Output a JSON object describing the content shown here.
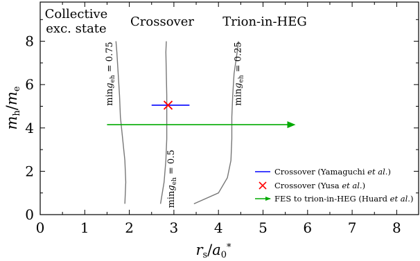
{
  "chart_data": {
    "type": "line",
    "xlabel": "r_s/a_0^*",
    "ylabel": "m_h/m_e",
    "xlim": [
      0,
      8.5
    ],
    "ylim": [
      0,
      9.2
    ],
    "xticks": [
      "0",
      "1",
      "2",
      "3",
      "4",
      "5",
      "6",
      "7",
      "8"
    ],
    "yticks": [
      "0",
      "2",
      "4",
      "6",
      "8"
    ],
    "region_labels": {
      "collective_line1": "Collective",
      "collective_line2": "exc. state",
      "crossover": "Crossover",
      "trion": "Trion-in-HEG"
    },
    "contours": [
      {
        "label": "min g_eh = 0.75",
        "label_text": "ming",
        "label_sub": "eh",
        "label_val": " = 0.75",
        "color": "#777777",
        "points": [
          [
            1.9,
            0.5
          ],
          [
            1.92,
            1.5
          ],
          [
            1.9,
            2.5
          ],
          [
            1.85,
            3.5
          ],
          [
            1.8,
            4.5
          ],
          [
            1.78,
            5.5
          ],
          [
            1.75,
            6.5
          ],
          [
            1.72,
            7.5
          ],
          [
            1.7,
            8.0
          ]
        ]
      },
      {
        "label": "min g_eh = 0.5",
        "label_text": "ming",
        "label_sub": "eh",
        "label_val": " = 0.5",
        "color": "#777777",
        "points": [
          [
            2.7,
            0.5
          ],
          [
            2.78,
            1.5
          ],
          [
            2.82,
            2.5
          ],
          [
            2.84,
            3.5
          ],
          [
            2.84,
            4.5
          ],
          [
            2.84,
            5.5
          ],
          [
            2.83,
            6.5
          ],
          [
            2.82,
            7.5
          ],
          [
            2.83,
            8.0
          ]
        ]
      },
      {
        "label": "min g_eh = 0.25",
        "label_text": "ming",
        "label_sub": "eh",
        "label_val": " = 0.25",
        "color": "#777777",
        "points": [
          [
            3.45,
            0.5
          ],
          [
            4.0,
            1.0
          ],
          [
            4.2,
            1.7
          ],
          [
            4.28,
            2.5
          ],
          [
            4.3,
            3.5
          ],
          [
            4.3,
            4.5
          ],
          [
            4.32,
            5.5
          ],
          [
            4.35,
            6.5
          ],
          [
            4.42,
            7.5
          ],
          [
            4.45,
            8.0
          ]
        ]
      }
    ],
    "markers": {
      "yamaguchi_segment": {
        "x": [
          2.5,
          3.35
        ],
        "y": 5.05,
        "color": "#0000ff"
      },
      "yusa_point": {
        "x": 2.87,
        "y": 5.05,
        "color": "#ff0000"
      },
      "huard_arrow": {
        "x": [
          1.5,
          5.7
        ],
        "y": 4.15,
        "color": "#00aa00"
      }
    },
    "legend": [
      {
        "text": "Crossover (Yamaguchi ",
        "em": "et al.",
        "tail": ")",
        "marker": "line",
        "color": "#0000ff"
      },
      {
        "text": "Crossover (Yusa ",
        "em": "et al.",
        "tail": ")",
        "marker": "x",
        "color": "#ff0000"
      },
      {
        "text": "FES to trion-in-HEG (Huard ",
        "em": "et al.",
        "tail": ")",
        "marker": "arrow",
        "color": "#00aa00"
      }
    ],
    "legend_position": "bottom-right"
  }
}
